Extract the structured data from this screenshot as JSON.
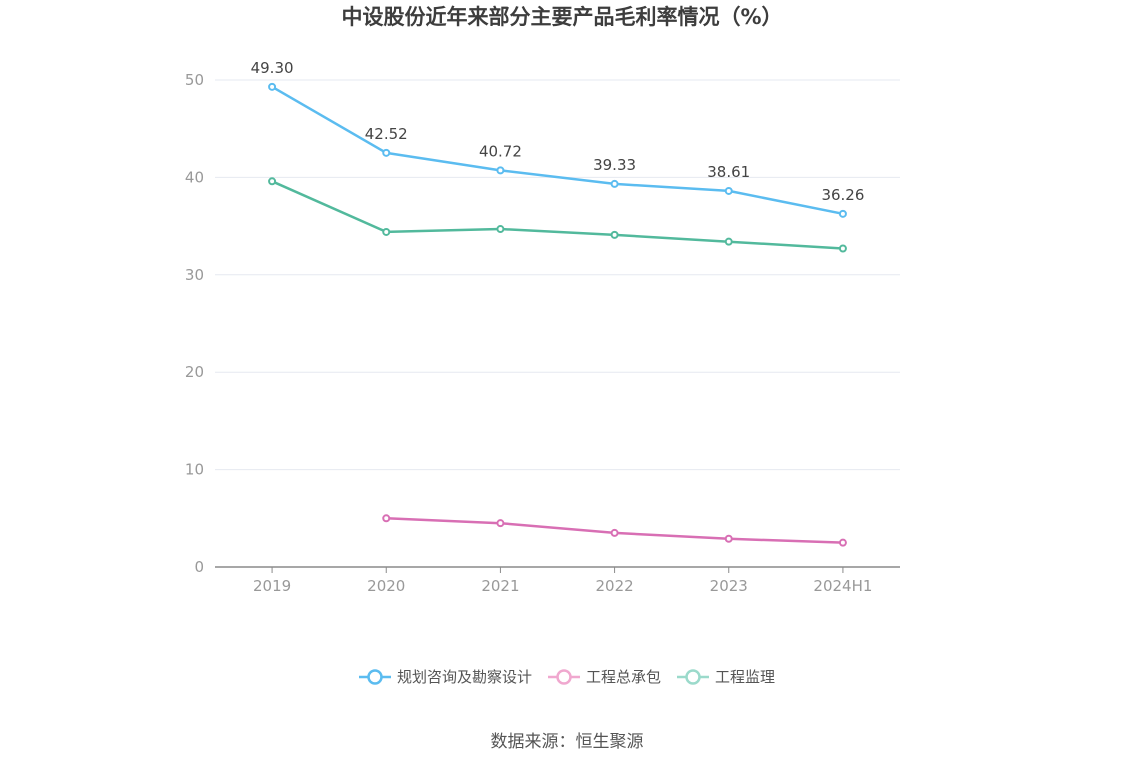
{
  "chart_data": {
    "type": "line",
    "title": "中设股份近年来部分主要产品毛利率情况（%）",
    "categories": [
      "2019",
      "2020",
      "2021",
      "2022",
      "2023",
      "2024H1"
    ],
    "ylim": [
      0,
      50
    ],
    "yticks": [
      0,
      10,
      20,
      30,
      40,
      50
    ],
    "grid": true,
    "legend_position": "bottom",
    "series": [
      {
        "name": "规划咨询及勘察设计",
        "color": "#5bbcf0",
        "values": [
          49.3,
          42.52,
          40.72,
          39.33,
          38.61,
          36.26
        ],
        "labels": [
          "49.30",
          "42.52",
          "40.72",
          "39.33",
          "38.61",
          "36.26"
        ]
      },
      {
        "name": "工程总承包",
        "color": "#d86fb4",
        "values": [
          null,
          5.0,
          4.5,
          3.5,
          2.9,
          2.5
        ]
      },
      {
        "name": "工程监理",
        "color": "#52b99c",
        "values": [
          39.6,
          34.4,
          34.7,
          34.1,
          33.4,
          32.7
        ]
      }
    ],
    "legend_colors": [
      "#5bbcf0",
      "#f0a8cf",
      "#9bdacb"
    ],
    "source": "数据来源：恒生聚源"
  }
}
